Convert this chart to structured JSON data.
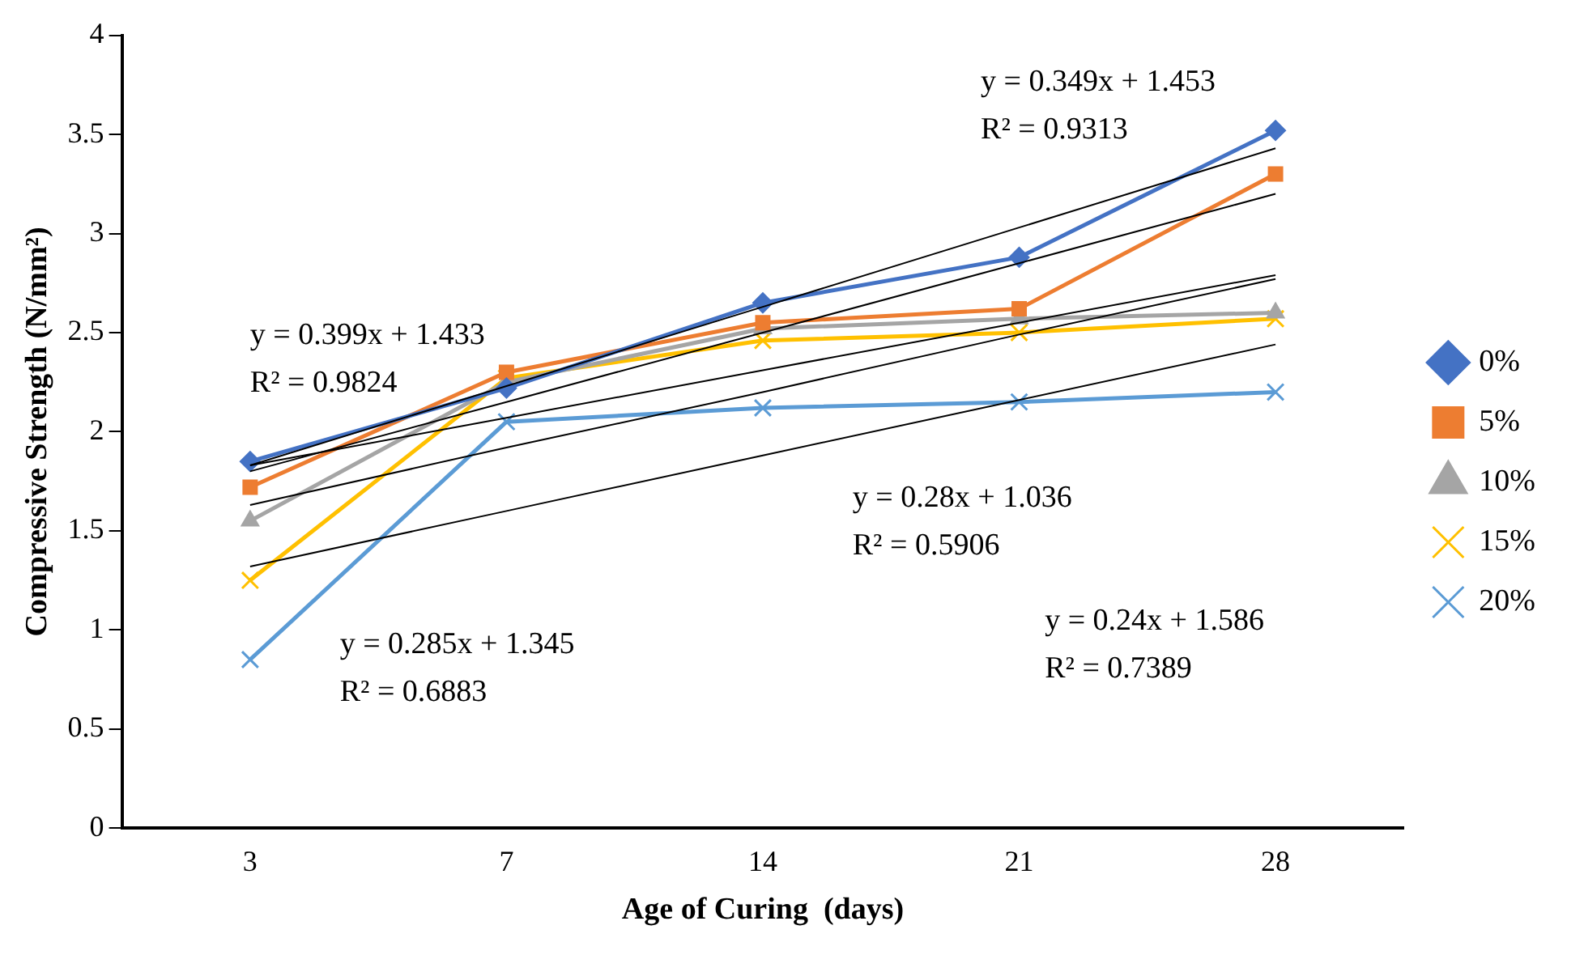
{
  "chart_data": {
    "type": "line",
    "xlabel": "Age of Curing  (days)",
    "ylabel": "Compressive Strength (N/mm²)",
    "categories": [
      "3",
      "7",
      "14",
      "21",
      "28"
    ],
    "series": [
      {
        "name": "0%",
        "color": "#4472c4",
        "marker": "diamond",
        "values": [
          1.85,
          2.22,
          2.65,
          2.88,
          3.52
        ]
      },
      {
        "name": "5%",
        "color": "#ed7d31",
        "marker": "square",
        "values": [
          1.72,
          2.3,
          2.55,
          2.62,
          3.3
        ]
      },
      {
        "name": "10%",
        "color": "#a5a5a5",
        "marker": "triangle",
        "values": [
          1.55,
          2.25,
          2.52,
          2.57,
          2.6
        ]
      },
      {
        "name": "15%",
        "color": "#ffc000",
        "marker": "cross",
        "values": [
          1.25,
          2.27,
          2.46,
          2.5,
          2.57
        ]
      },
      {
        "name": "20%",
        "color": "#5b9bd5",
        "marker": "cross",
        "values": [
          0.85,
          2.05,
          2.12,
          2.15,
          2.2
        ]
      },
      {
        "color": "#000000",
        "marker": "none",
        "values": [
          1.83,
          2.23,
          2.63,
          3.03,
          3.43
        ]
      },
      {
        "color": "#000000",
        "marker": "none",
        "values": [
          1.8,
          2.15,
          2.5,
          2.85,
          3.2
        ]
      },
      {
        "color": "#000000",
        "marker": "none",
        "values": [
          1.83,
          2.07,
          2.31,
          2.55,
          2.79
        ]
      },
      {
        "color": "#000000",
        "marker": "none",
        "values": [
          1.63,
          1.92,
          2.2,
          2.49,
          2.77
        ]
      },
      {
        "color": "#000000",
        "marker": "none",
        "values": [
          1.32,
          1.6,
          1.88,
          2.16,
          2.44
        ]
      }
    ],
    "ylim": [
      0,
      4
    ],
    "yticks": [
      0,
      0.5,
      1,
      1.5,
      2,
      2.5,
      3,
      3.5,
      4
    ],
    "grid": false,
    "legend": "right",
    "line_style": "solid",
    "annotations": [
      "y = 0.349x + 1.453",
      "R² = 0.9313",
      "y = 0.24x + 1.586",
      "R² = 0.7389",
      "y = 0.399x + 1.433",
      "R² = 0.9824",
      "y = 0.28x + 1.036",
      "R² = 0.5906",
      "y = 0.285x + 1.345",
      "R² = 0.6883"
    ]
  }
}
